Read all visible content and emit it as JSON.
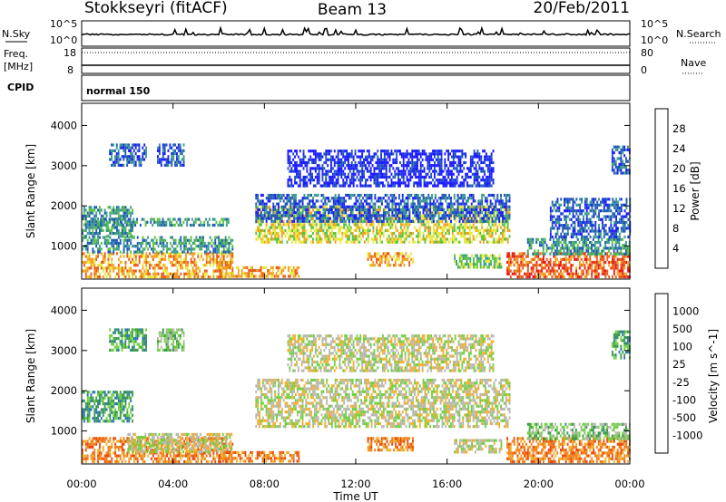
{
  "header": {
    "station": "Stokkseyri (fitACF)",
    "beam": "Beam 13",
    "date": "20/Feb/2011"
  },
  "strip_labels": {
    "nsky": "N.Sky",
    "nsearch": "N.Search",
    "freq_line1": "Freq.",
    "freq_line2": "[MHz]",
    "nave": "Nave",
    "cpid": "CPID",
    "mode": "normal 150"
  },
  "strip_ticks": {
    "noise_hi": "10^5",
    "noise_lo": "10^0",
    "freq_hi": "18",
    "freq_lo": "8",
    "nave_hi": "80",
    "nave_lo": "0"
  },
  "chart_data": [
    {
      "type": "heatmap",
      "title": "Power",
      "ylabel": "Slant Range [km]",
      "xlabel": "Time UT",
      "x_ticks": [
        "00:00",
        "04:00",
        "08:00",
        "12:00",
        "16:00",
        "20:00",
        "00:00"
      ],
      "y_ticks": [
        "1000",
        "2000",
        "3000",
        "4000"
      ],
      "ylim": [
        180,
        4550
      ],
      "colorbar_label": "Power [dB]",
      "colorbar_ticks": [
        "4",
        "8",
        "12",
        "16",
        "20",
        "24",
        "28"
      ],
      "colorbar_colors": [
        "#1a1aff",
        "#1f58b8",
        "#3b9a8e",
        "#58c23e",
        "#e8e83a",
        "#f0a020",
        "#e85a18",
        "#e81818"
      ],
      "regions": [
        {
          "t0": 0.0,
          "t1": 6.6,
          "r0": 250,
          "r1": 850,
          "level": 5
        },
        {
          "t0": 0.0,
          "t1": 6.6,
          "r0": 850,
          "r1": 1250,
          "level": 2
        },
        {
          "t0": 0.0,
          "t1": 2.2,
          "r0": 1250,
          "r1": 2000,
          "level": 2
        },
        {
          "t0": 1.2,
          "t1": 2.8,
          "r0": 3000,
          "r1": 3550,
          "level": 1
        },
        {
          "t0": 3.3,
          "t1": 4.5,
          "r0": 3000,
          "r1": 3550,
          "level": 1
        },
        {
          "t0": 0.5,
          "t1": 6.4,
          "r0": 1500,
          "r1": 1700,
          "level": 2
        },
        {
          "t0": 6.0,
          "t1": 9.5,
          "r0": 250,
          "r1": 500,
          "level": 5
        },
        {
          "t0": 7.6,
          "t1": 18.7,
          "r0": 1100,
          "r1": 2000,
          "level": 4
        },
        {
          "t0": 7.6,
          "t1": 18.7,
          "r0": 1650,
          "r1": 2300,
          "level": 1
        },
        {
          "t0": 9.0,
          "t1": 18.0,
          "r0": 2500,
          "r1": 3400,
          "level": 0
        },
        {
          "t0": 12.5,
          "t1": 14.5,
          "r0": 500,
          "r1": 850,
          "level": 5
        },
        {
          "t0": 16.3,
          "t1": 18.4,
          "r0": 500,
          "r1": 800,
          "level": 3
        },
        {
          "t0": 18.6,
          "t1": 24.0,
          "r0": 250,
          "r1": 850,
          "level": 6
        },
        {
          "t0": 19.5,
          "t1": 24.0,
          "r0": 800,
          "r1": 1200,
          "level": 2
        },
        {
          "t0": 20.5,
          "t1": 24.0,
          "r0": 1200,
          "r1": 2200,
          "level": 1
        },
        {
          "t0": 23.2,
          "t1": 24.0,
          "r0": 2800,
          "r1": 3500,
          "level": 1
        }
      ]
    },
    {
      "type": "heatmap",
      "title": "Velocity",
      "ylabel": "Slant Range [km]",
      "xlabel": "Time UT",
      "x_ticks": [
        "00:00",
        "04:00",
        "08:00",
        "12:00",
        "16:00",
        "20:00",
        "00:00"
      ],
      "y_ticks": [
        "1000",
        "2000",
        "3000",
        "4000"
      ],
      "ylim": [
        180,
        4550
      ],
      "colorbar_label": "Velocity [m s^-1]",
      "colorbar_ticks": [
        "1000",
        "500",
        "100",
        "25",
        "-25",
        "-100",
        "-500",
        "-1000"
      ],
      "colorbar_colors": [
        "#1a38b8",
        "#2a78a8",
        "#3a9a4a",
        "#70d040",
        "#b8b8b0",
        "#f0b030",
        "#f08018",
        "#e84a10",
        "#e81818"
      ],
      "regions": [
        {
          "t0": 0.0,
          "t1": 6.6,
          "r0": 250,
          "r1": 850,
          "level": 6
        },
        {
          "t0": 2.0,
          "t1": 6.6,
          "r0": 500,
          "r1": 950,
          "level": 4
        },
        {
          "t0": 0.0,
          "t1": 2.2,
          "r0": 1250,
          "r1": 2000,
          "level": 2
        },
        {
          "t0": 1.2,
          "t1": 2.8,
          "r0": 3000,
          "r1": 3550,
          "level": 2
        },
        {
          "t0": 3.3,
          "t1": 4.5,
          "r0": 3000,
          "r1": 3550,
          "level": 3
        },
        {
          "t0": 6.0,
          "t1": 9.5,
          "r0": 250,
          "r1": 500,
          "level": 6
        },
        {
          "t0": 7.6,
          "t1": 18.7,
          "r0": 1100,
          "r1": 2300,
          "level": 4
        },
        {
          "t0": 9.0,
          "t1": 18.0,
          "r0": 2500,
          "r1": 3400,
          "level": 4
        },
        {
          "t0": 12.5,
          "t1": 14.5,
          "r0": 500,
          "r1": 850,
          "level": 6
        },
        {
          "t0": 16.3,
          "t1": 18.4,
          "r0": 500,
          "r1": 800,
          "level": 4
        },
        {
          "t0": 18.6,
          "t1": 24.0,
          "r0": 250,
          "r1": 850,
          "level": 6
        },
        {
          "t0": 19.5,
          "t1": 24.0,
          "r0": 800,
          "r1": 1200,
          "level": 3
        },
        {
          "t0": 23.2,
          "t1": 24.0,
          "r0": 2800,
          "r1": 3500,
          "level": 2
        }
      ]
    }
  ]
}
